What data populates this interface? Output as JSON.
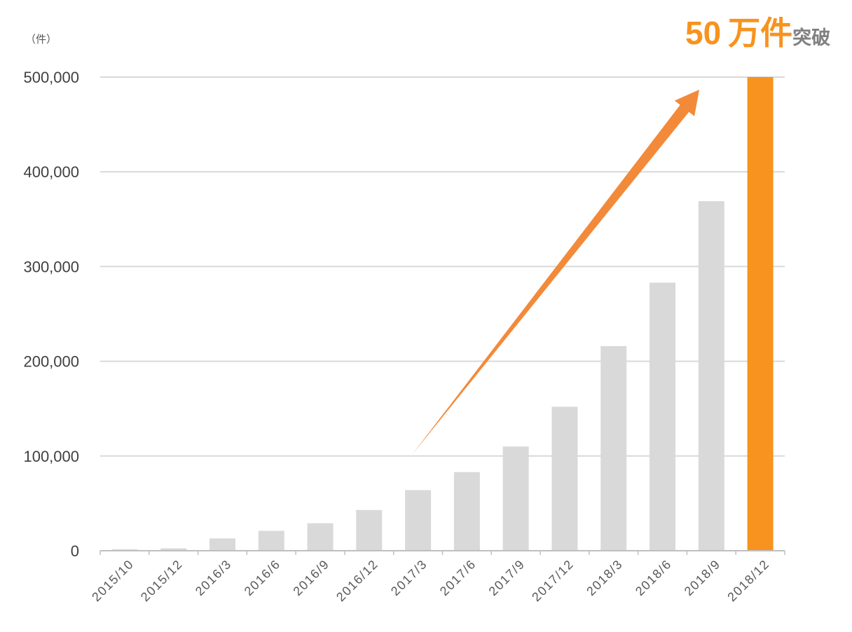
{
  "chart_data": {
    "type": "bar",
    "ylabel": "（件）",
    "categories": [
      "2015/10",
      "2015/12",
      "2016/3",
      "2016/6",
      "2016/9",
      "2016/12",
      "2017/3",
      "2017/6",
      "2017/9",
      "2017/12",
      "2018/3",
      "2018/6",
      "2018/9",
      "2018/12"
    ],
    "values": [
      1500,
      2500,
      13000,
      21000,
      29000,
      43000,
      64000,
      83000,
      110000,
      152000,
      216000,
      283000,
      369000,
      500000
    ],
    "bar_colors": [
      "#D9D9D9",
      "#D9D9D9",
      "#D9D9D9",
      "#D9D9D9",
      "#D9D9D9",
      "#D9D9D9",
      "#D9D9D9",
      "#D9D9D9",
      "#D9D9D9",
      "#D9D9D9",
      "#D9D9D9",
      "#D9D9D9",
      "#D9D9D9",
      "#F7931E"
    ],
    "ylim": [
      0,
      500000
    ],
    "yticks": [
      0,
      100000,
      200000,
      300000,
      400000,
      500000
    ],
    "ytick_labels": [
      "0",
      "100,000",
      "200,000",
      "300,000",
      "400,000",
      "500,000"
    ],
    "grid": true,
    "legend": "none",
    "annotation": {
      "number": "50",
      "unit": "万件",
      "suffix": "突破"
    },
    "colors": {
      "arrow": "#F28A3A",
      "annotation_text": "#F7931E",
      "annotation_suffix": "#808080"
    }
  }
}
